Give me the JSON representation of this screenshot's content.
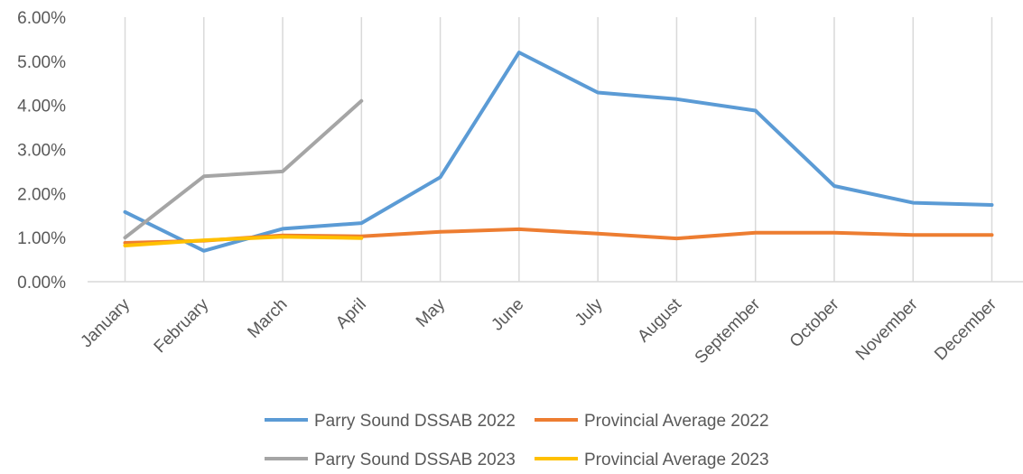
{
  "chart_data": {
    "type": "line",
    "categories": [
      "January",
      "February",
      "March",
      "April",
      "May",
      "June",
      "July",
      "August",
      "September",
      "October",
      "November",
      "December"
    ],
    "yticks": [
      "0.00%",
      "1.00%",
      "2.00%",
      "3.00%",
      "4.00%",
      "5.00%",
      "6.00%"
    ],
    "ylim": [
      0,
      6
    ],
    "grid": "vertical",
    "legend_position": "bottom",
    "series": [
      {
        "name": "Parry Sound DSSAB 2022",
        "color": "#5B9BD5",
        "values": [
          1.58,
          0.7,
          1.2,
          1.33,
          2.37,
          5.2,
          4.29,
          4.14,
          3.88,
          2.17,
          1.79,
          1.74
        ]
      },
      {
        "name": "Provincial Average 2022",
        "color": "#ED7D31",
        "values": [
          0.88,
          0.93,
          1.05,
          1.03,
          1.13,
          1.19,
          1.09,
          0.98,
          1.11,
          1.11,
          1.06,
          1.06
        ]
      },
      {
        "name": "Parry Sound DSSAB 2023",
        "color": "#A5A5A5",
        "values": [
          1.0,
          2.39,
          2.5,
          4.1,
          null,
          null,
          null,
          null,
          null,
          null,
          null,
          null
        ]
      },
      {
        "name": "Provincial Average 2023",
        "color": "#FFC000",
        "values": [
          0.82,
          0.94,
          1.02,
          0.99,
          null,
          null,
          null,
          null,
          null,
          null,
          null,
          null
        ]
      }
    ]
  }
}
